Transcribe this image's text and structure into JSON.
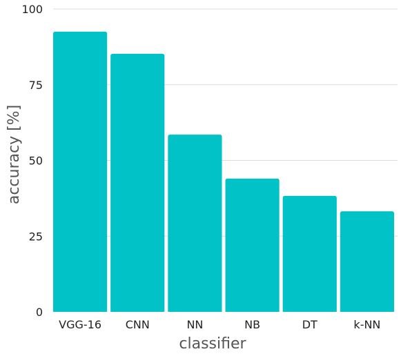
{
  "chart_data": {
    "type": "bar",
    "categories": [
      "VGG-16",
      "CNN",
      "NN",
      "NB",
      "DT",
      "k-NN"
    ],
    "values": [
      92.5,
      85.2,
      58.5,
      44.0,
      38.3,
      33.2
    ],
    "title": "",
    "xlabel": "classifier",
    "ylabel": "accuracy [%]",
    "ylim": [
      0,
      100
    ],
    "yticks": [
      0,
      25,
      50,
      75,
      100
    ],
    "grid": true,
    "bar_color": "#00c2c7"
  }
}
